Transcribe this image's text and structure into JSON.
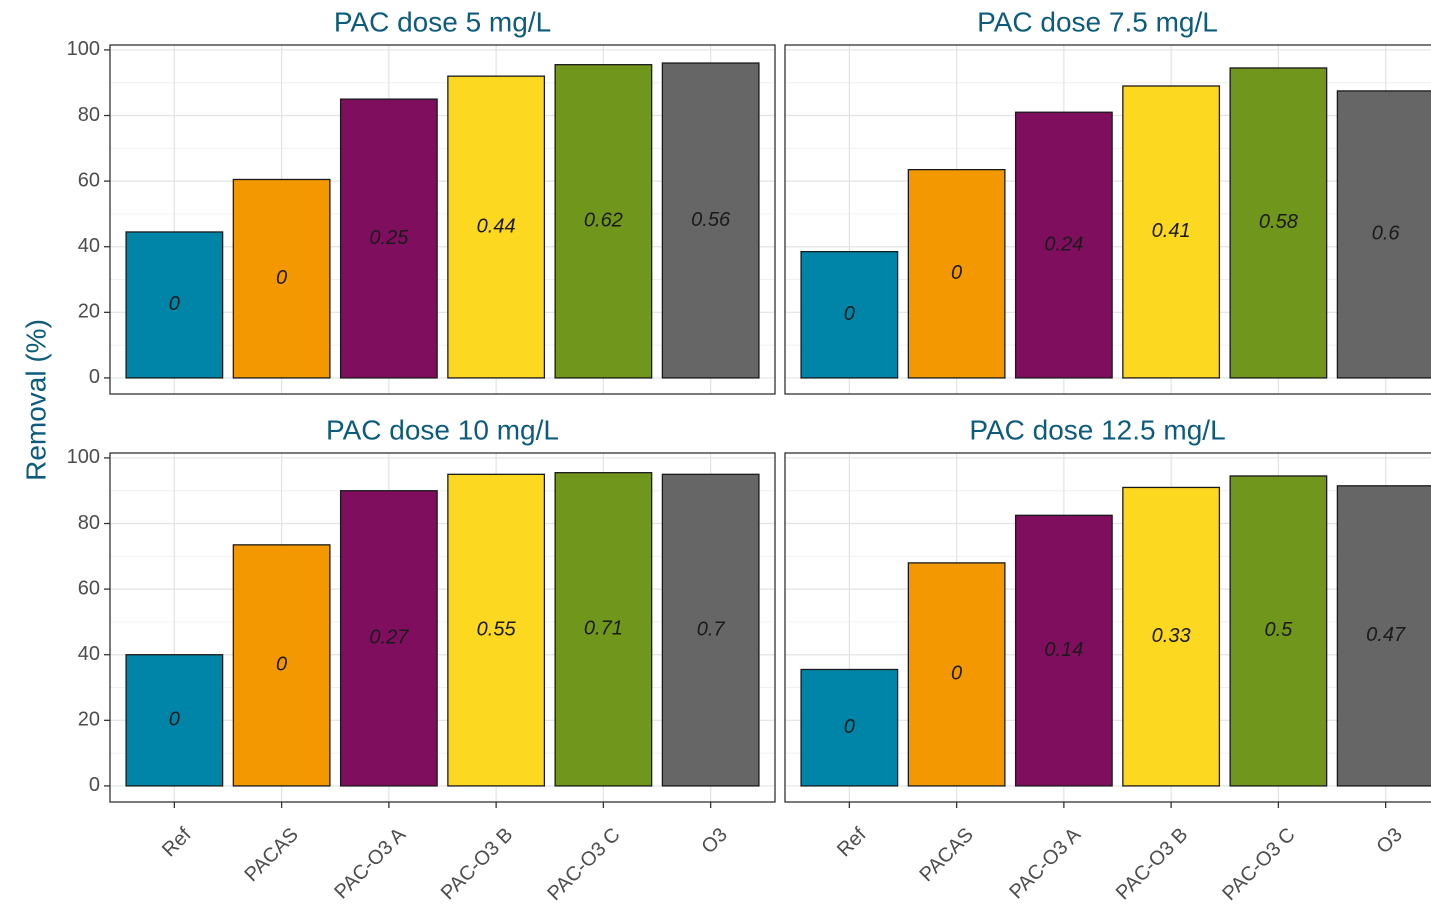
{
  "chart_data": {
    "type": "bar",
    "ylabel": "Removal (%)",
    "categories": [
      "Ref",
      "PACAS",
      "PAC-O3 A",
      "PAC-O3 B",
      "PAC-O3 C",
      "O3"
    ],
    "colors": [
      "#0085a8",
      "#f39800",
      "#7f0f5e",
      "#fdd820",
      "#70961b",
      "#666666"
    ],
    "ylim": [
      -4.9,
      101.5
    ],
    "yticks": [
      0,
      20,
      40,
      60,
      80,
      100
    ],
    "grid": true,
    "facets": [
      {
        "title": "PAC dose 5 mg/L",
        "values": [
          44.5,
          60.5,
          85,
          92,
          95.5,
          96
        ],
        "value_labels": [
          0,
          0,
          0.25,
          0.44,
          0.62,
          0.56
        ]
      },
      {
        "title": "PAC dose 7.5 mg/L",
        "values": [
          38.5,
          63.5,
          81,
          89,
          94.5,
          87.5
        ],
        "value_labels": [
          0,
          0,
          0.24,
          0.41,
          0.58,
          0.6
        ]
      },
      {
        "title": "PAC dose 10 mg/L",
        "values": [
          40,
          73.5,
          90,
          95,
          95.5,
          95
        ],
        "value_labels": [
          0,
          0,
          0.27,
          0.55,
          0.71,
          0.7
        ]
      },
      {
        "title": "PAC dose 12.5 mg/L",
        "values": [
          35.5,
          68,
          82.5,
          91,
          94.5,
          91.5
        ],
        "value_labels": [
          0,
          0,
          0.14,
          0.33,
          0.5,
          0.47
        ]
      }
    ]
  }
}
